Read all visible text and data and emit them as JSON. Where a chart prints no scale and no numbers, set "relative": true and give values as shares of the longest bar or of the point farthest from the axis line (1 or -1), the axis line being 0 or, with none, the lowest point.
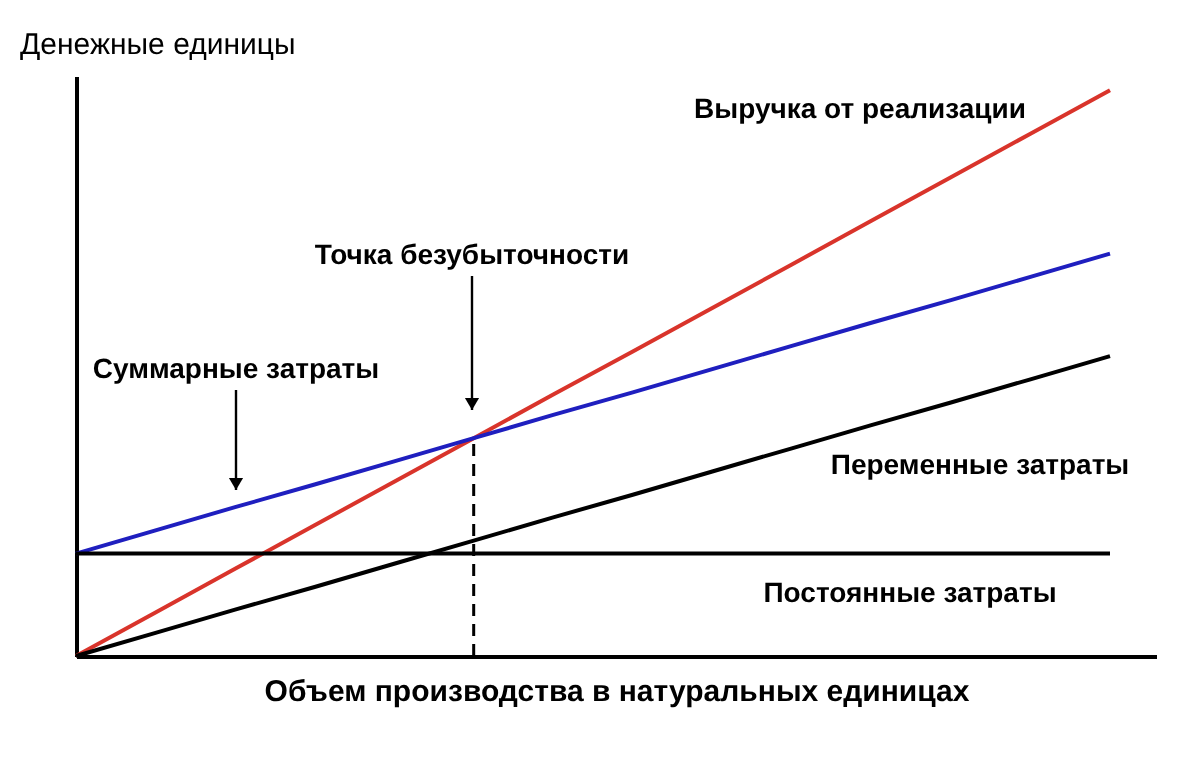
{
  "chart_data": {
    "type": "line",
    "relative": true,
    "xlabel": "Объем производства в натуральных единицах",
    "ylabel": "Денежные единицы",
    "categories": [
      null,
      null,
      null,
      null,
      null,
      null,
      null,
      null,
      null,
      null,
      null,
      null,
      null,
      null
    ],
    "series": [
      {
        "name": "Выручка от реализации",
        "color": "#d9342b",
        "values": [
          0,
          0.077,
          0.154,
          0.231,
          0.308,
          0.385,
          0.462,
          0.538,
          0.615,
          0.692,
          0.769,
          0.846,
          0.923,
          1
        ]
      },
      {
        "name": "Суммарные затраты",
        "color": "#1f1fbf",
        "values": [
          0.181,
          0.222,
          0.263,
          0.303,
          0.344,
          0.385,
          0.426,
          0.466,
          0.507,
          0.548,
          0.589,
          0.629,
          0.67,
          0.711
        ]
      },
      {
        "name": "Переменные затраты",
        "color": "#000000",
        "values": [
          0,
          0.041,
          0.082,
          0.122,
          0.163,
          0.204,
          0.245,
          0.285,
          0.326,
          0.367,
          0.408,
          0.448,
          0.489,
          0.53
        ]
      },
      {
        "name": "Постоянные затраты",
        "color": "#000000",
        "values": [
          0.181,
          0.181,
          0.181,
          0.181,
          0.181,
          0.181,
          0.181,
          0.181,
          0.181,
          0.181,
          0.181,
          0.181,
          0.181,
          0.181
        ]
      }
    ],
    "annotations": [
      "Точка безубыточности"
    ],
    "marker": "none"
  }
}
